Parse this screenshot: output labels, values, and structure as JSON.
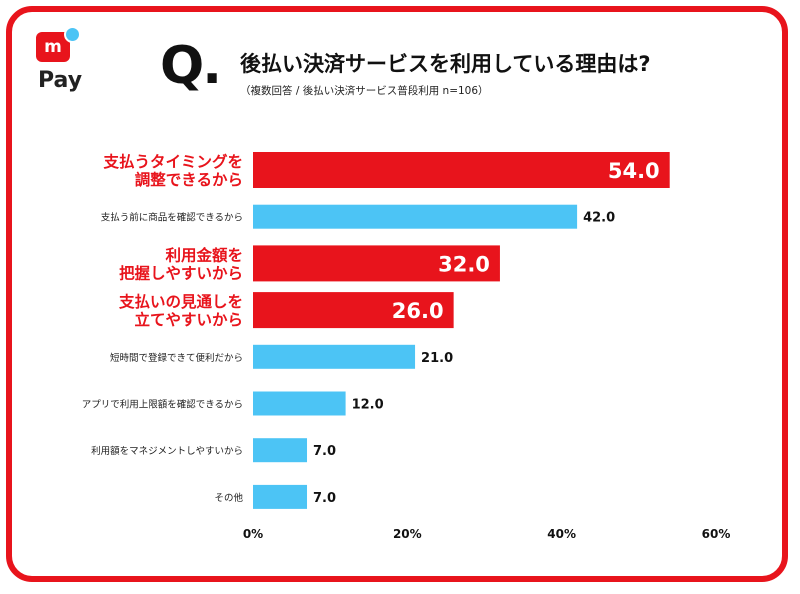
{
  "logo": {
    "icon_text": "m",
    "brand": "Pay",
    "colors": {
      "red": "#e8141c",
      "blue": "#4cc4f5"
    }
  },
  "question": {
    "mark": "Q.",
    "title": "後払い決済サービスを利用している理由は?",
    "subtitle": "（複数回答 / 後払い決済サービス普段利用 n=106）"
  },
  "chart_data": {
    "type": "bar",
    "orientation": "horizontal",
    "categories": [
      "支払うタイミングを|調整できるから",
      "支払う前に商品を確認できるから",
      "利用金額を|把握しやすいから",
      "支払いの見通しを|立てやすいから",
      "短時間で登録できて便利だから",
      "アプリで利用上限額を確認できるから",
      "利用額をマネジメントしやすいから",
      "その他"
    ],
    "values": [
      54.0,
      42.0,
      32.0,
      26.0,
      21.0,
      12.0,
      7.0,
      7.0
    ],
    "value_labels": [
      "54.0",
      "42.0",
      "32.0",
      "26.0",
      "21.0",
      "12.0",
      "7.0",
      "7.0"
    ],
    "highlight": [
      true,
      false,
      true,
      true,
      false,
      false,
      false,
      false
    ],
    "colors": {
      "highlight": "#e8141c",
      "normal": "#4cc4f5"
    },
    "xlim": [
      0,
      60
    ],
    "xticks": [
      "0%",
      "20%",
      "40%",
      "60%"
    ],
    "grid": false
  }
}
